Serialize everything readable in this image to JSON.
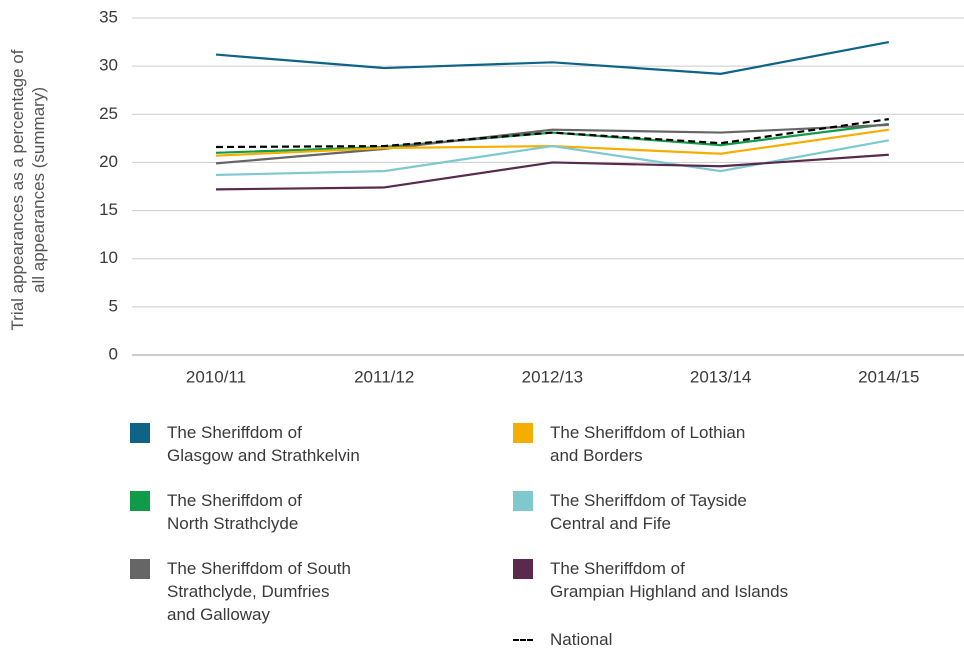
{
  "chart_data": {
    "type": "line",
    "y_label": "Trial appearances as a percentage of\nall appearances (summary)",
    "categories": [
      "2010/11",
      "2011/12",
      "2012/13",
      "2013/14",
      "2014/15"
    ],
    "ylim": [
      0,
      35
    ],
    "yticks": [
      0,
      5,
      10,
      15,
      20,
      25,
      30,
      35
    ],
    "grid": true,
    "series": [
      {
        "name": "The Sheriffdom of\nGlasgow and Strathkelvin",
        "color": "#0e6487",
        "values": [
          31.2,
          29.8,
          30.4,
          29.2,
          32.5
        ]
      },
      {
        "name": "The Sheriffdom of\nNorth Strathclyde",
        "color": "#119a48",
        "values": [
          21.0,
          21.6,
          23.1,
          21.8,
          24.0
        ]
      },
      {
        "name": "The Sheriffdom of South\nStrathclyde, Dumfries\nand Galloway",
        "color": "#666666",
        "values": [
          19.9,
          21.4,
          23.4,
          23.1,
          23.9
        ]
      },
      {
        "name": "The Sheriffdom of Lothian\nand Borders",
        "color": "#f5ae00",
        "values": [
          20.7,
          21.5,
          21.7,
          20.9,
          23.4
        ]
      },
      {
        "name": "The Sheriffdom of Tayside\nCentral and Fife",
        "color": "#7dc9ce",
        "values": [
          18.7,
          19.1,
          21.7,
          19.1,
          22.3
        ]
      },
      {
        "name": "The Sheriffdom of\nGrampian Highland and Islands",
        "color": "#5a2a4e",
        "values": [
          17.2,
          17.4,
          20.0,
          19.6,
          20.8
        ]
      },
      {
        "name": "National",
        "color": "#000000",
        "dashed": true,
        "values": [
          21.6,
          21.7,
          23.1,
          22.0,
          24.5
        ]
      }
    ]
  }
}
